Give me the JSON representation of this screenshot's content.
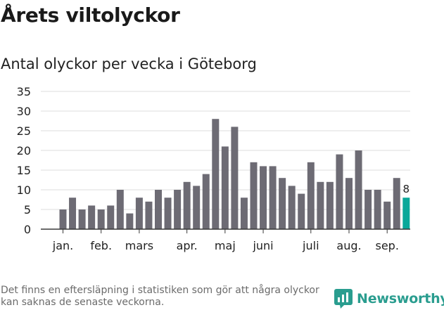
{
  "title": "Årets viltolyckor",
  "subtitle": "Antal olyckor per vecka i Göteborg",
  "footnote": "Det finns en eftersläpning i statistiken som gör att några olyckor kan saknas de senaste veckorna.",
  "brand": {
    "name": "Newsworthy",
    "icon": "newsworthy-logo-icon",
    "color": "#2a9d8f"
  },
  "colors": {
    "bar": "#6d6b74",
    "highlight": "#0aa89a",
    "grid": "#dddddd",
    "text": "#222222"
  },
  "chart_data": {
    "type": "bar",
    "title": "Antal olyckor per vecka i Göteborg",
    "xlabel": "",
    "ylabel": "",
    "ylim": [
      0,
      35
    ],
    "yticks": [
      0,
      5,
      10,
      15,
      20,
      25,
      30,
      35
    ],
    "grid": true,
    "legend": "none",
    "month_labels": [
      {
        "label": "jan.",
        "week": 1
      },
      {
        "label": "feb.",
        "week": 5
      },
      {
        "label": "mars",
        "week": 9
      },
      {
        "label": "apr.",
        "week": 14
      },
      {
        "label": "maj",
        "week": 18
      },
      {
        "label": "juni",
        "week": 22
      },
      {
        "label": "juli",
        "week": 27
      },
      {
        "label": "aug.",
        "week": 31
      },
      {
        "label": "sep.",
        "week": 35
      }
    ],
    "weeks": [
      1,
      2,
      3,
      4,
      5,
      6,
      7,
      8,
      9,
      10,
      11,
      12,
      13,
      14,
      15,
      16,
      17,
      18,
      19,
      20,
      21,
      22,
      23,
      24,
      25,
      26,
      27,
      28,
      29,
      30,
      31,
      32,
      33,
      34,
      35,
      36,
      37
    ],
    "values": [
      5,
      8,
      5,
      6,
      5,
      6,
      10,
      4,
      8,
      7,
      10,
      8,
      10,
      12,
      11,
      14,
      28,
      21,
      26,
      8,
      17,
      16,
      16,
      13,
      11,
      9,
      17,
      12,
      12,
      19,
      13,
      20,
      10,
      10,
      7,
      13,
      8
    ],
    "highlight_index": 36,
    "highlight_label": "8"
  }
}
